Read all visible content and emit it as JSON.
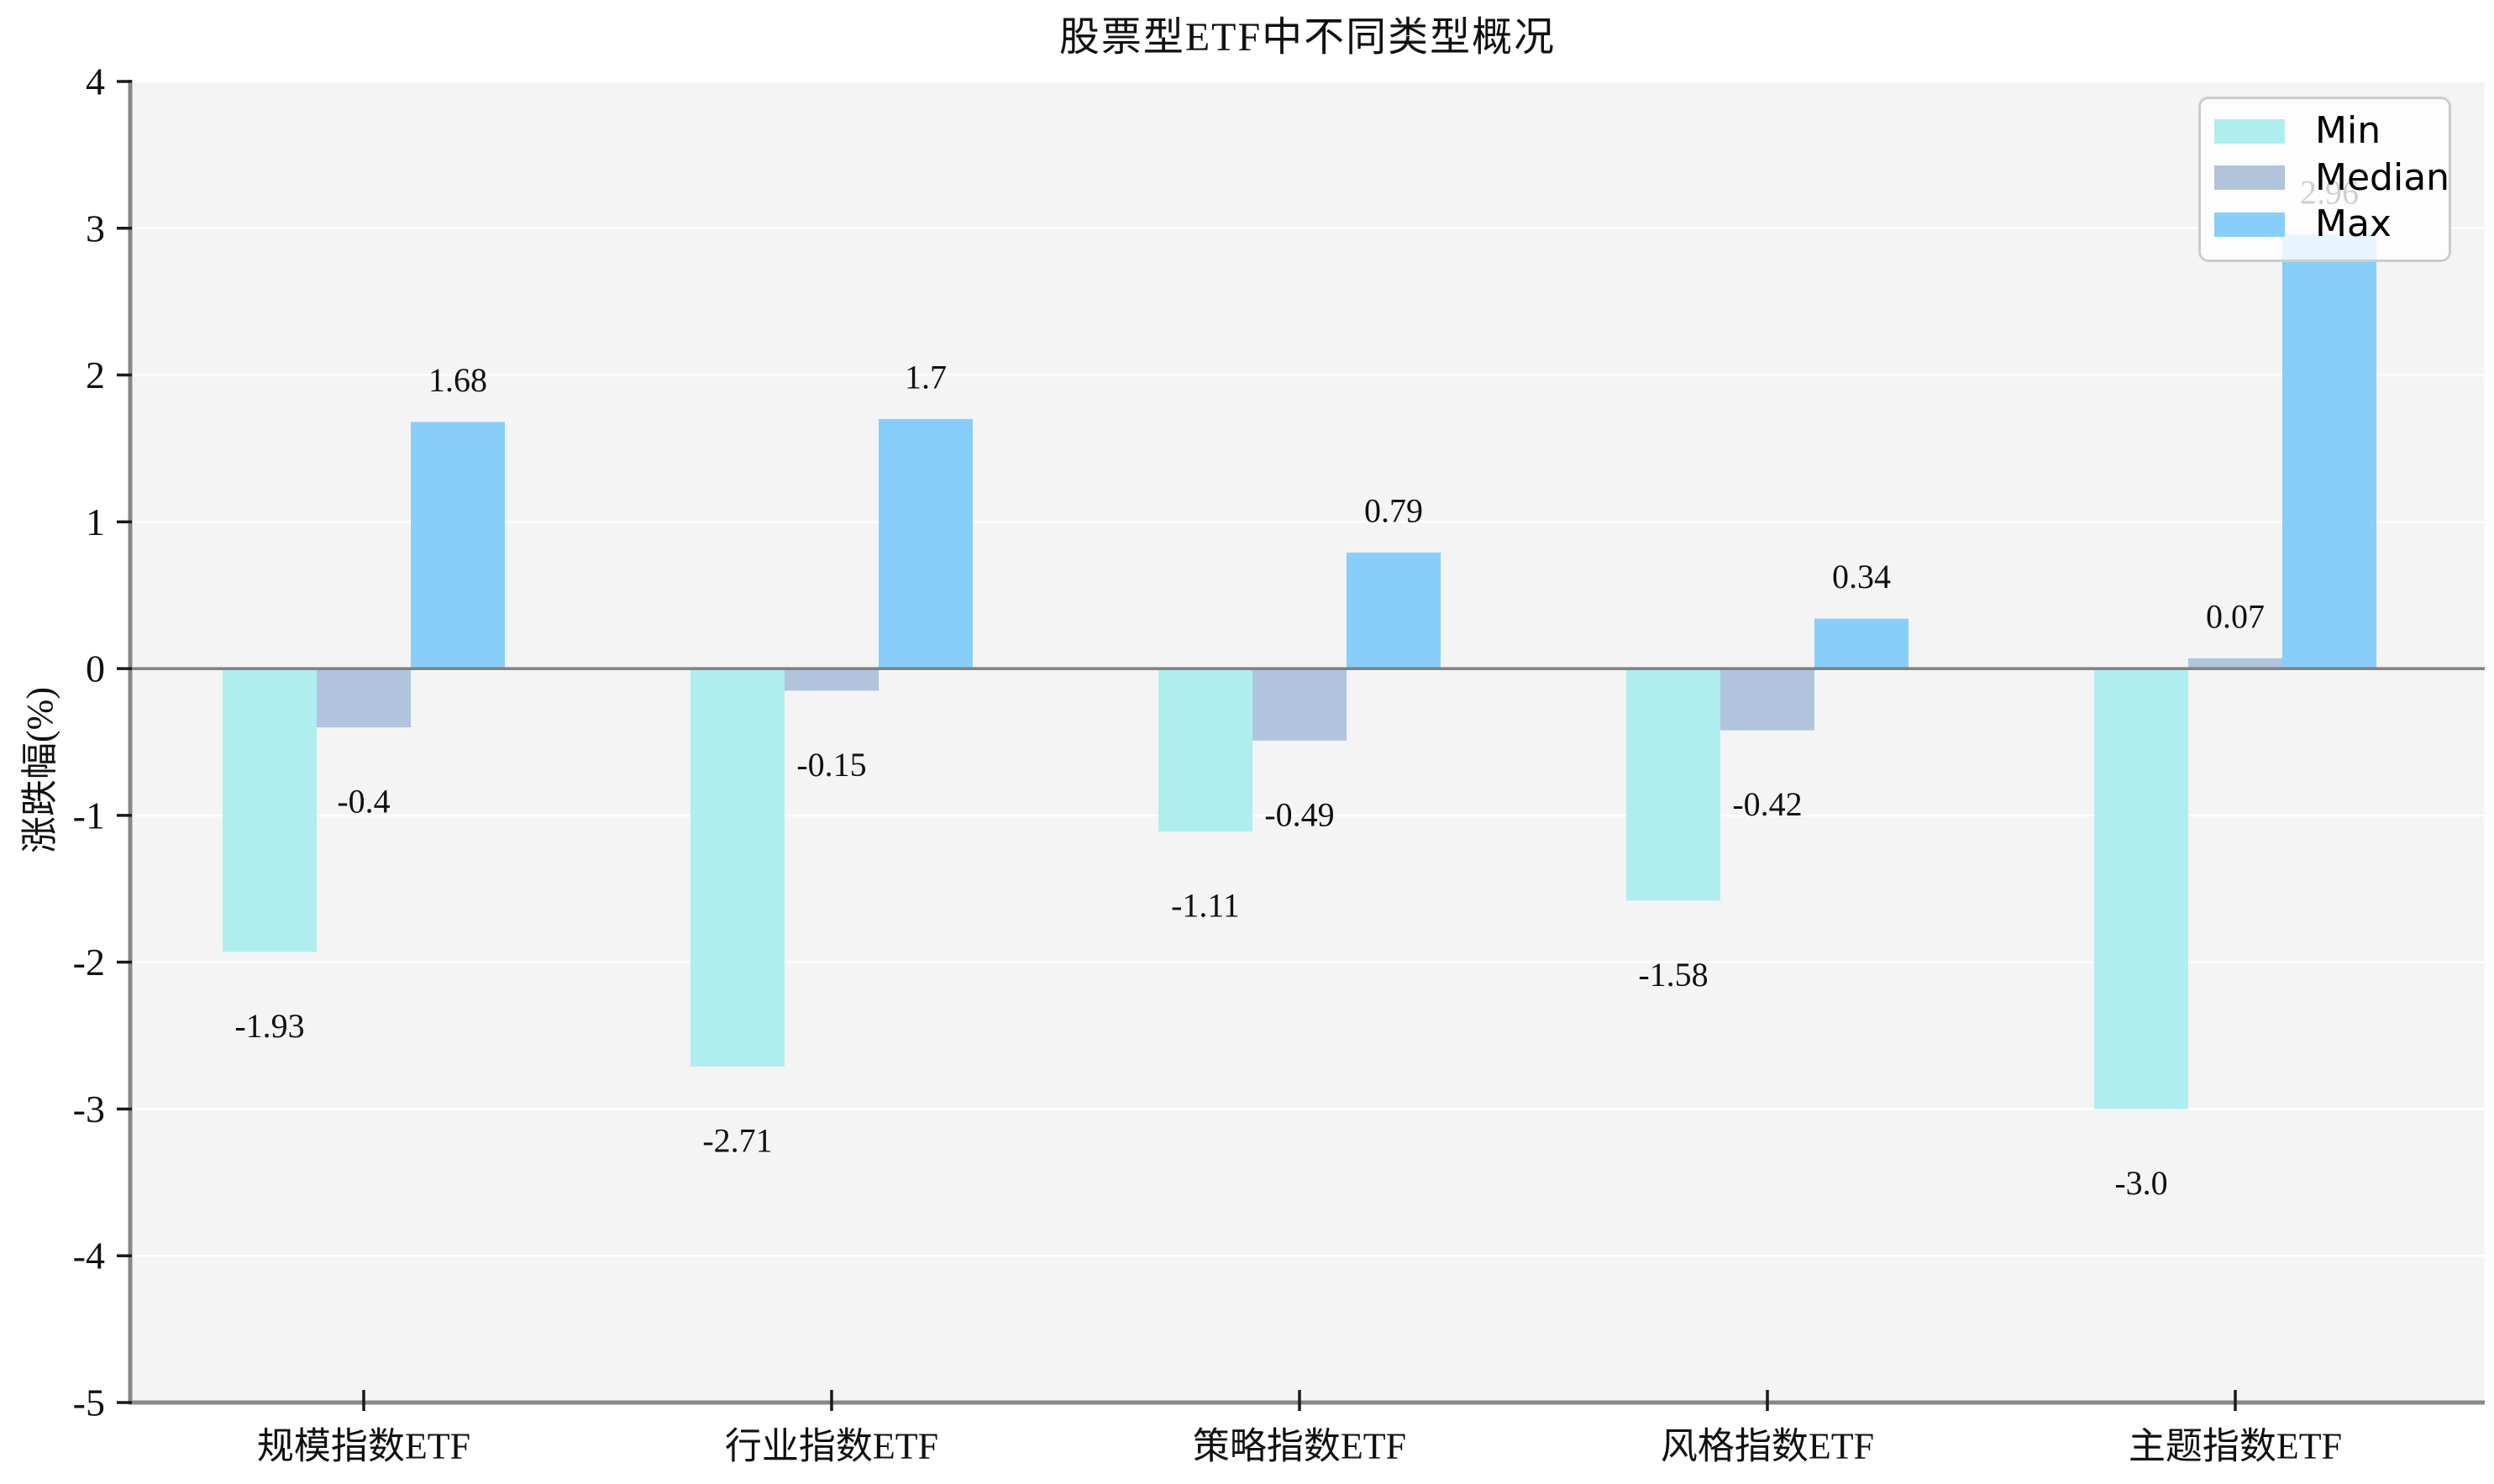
{
  "chart_data": {
    "type": "bar",
    "title": "股票型ETF中不同类型概况",
    "xlabel": "",
    "ylabel": "涨跌幅(%)",
    "categories": [
      "规模指数ETF",
      "行业指数ETF",
      "策略指数ETF",
      "风格指数ETF",
      "主题指数ETF"
    ],
    "series": [
      {
        "name": "Min",
        "color": "#AFEEEE",
        "values": [
          -1.93,
          -2.71,
          -1.11,
          -1.58,
          -3.0
        ],
        "labels": [
          "-1.93",
          "-2.71",
          "-1.11",
          "-1.58",
          "-3.0"
        ]
      },
      {
        "name": "Median",
        "color": "#B0C4DE",
        "values": [
          -0.4,
          -0.15,
          -0.49,
          -0.42,
          0.07
        ],
        "labels": [
          "-0.4",
          "-0.15",
          "-0.49",
          "-0.42",
          "0.07"
        ]
      },
      {
        "name": "Max",
        "color": "#87CEFA",
        "values": [
          1.68,
          1.7,
          0.79,
          0.34,
          2.96
        ],
        "labels": [
          "1.68",
          "1.7",
          "0.79",
          "0.34",
          "2.96"
        ]
      }
    ],
    "ylim": [
      -5,
      4
    ],
    "yticks": [
      4,
      3,
      2,
      1,
      0,
      -1,
      -2,
      -3,
      -4,
      -5
    ],
    "grid": true,
    "legend_position": "top-right",
    "style": {
      "plot_background": "#f4f4f4",
      "figure_background": "#ffffff",
      "gridline_color": "#ffffff",
      "axis_color": "#888888",
      "zero_line_color": "#808080",
      "tick_mark_color": "#1a1a1a",
      "text_color": "#111111",
      "legend_background": "rgba(255,255,255,0.8)",
      "legend_border": "#cccccc"
    }
  }
}
